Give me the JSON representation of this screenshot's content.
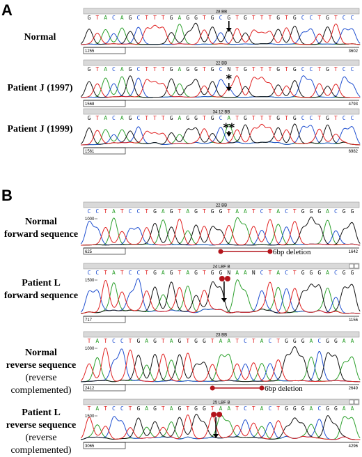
{
  "panels": {
    "A": {
      "letter": "A",
      "rows": [
        {
          "label": "Normal",
          "header": "28 BB",
          "seq": "GTACAGCTTTGAGGTGCGTGTTTGTGCCTGTCC",
          "left": "1255",
          "right": "3602",
          "mark": "arrow"
        },
        {
          "label": "Patient J (1997)",
          "header": "22 BB",
          "seq": "GTACAGCTTTGAGGTGCNTGTTTGTGCCTGTCC",
          "left": "1568",
          "right": "4793",
          "mark": "star"
        },
        {
          "label": "Patient J (1999)",
          "header": "34 12 BB",
          "seq": "GTACAGCTTTGAGGTGCATGTTTGTGCCTGTCC",
          "left": "1561",
          "right": "6982",
          "mark": "doublestar"
        }
      ]
    },
    "B": {
      "letter": "B",
      "rows": [
        {
          "label_lines": [
            "Normal",
            "forward sequence"
          ],
          "header": "22 BB",
          "seq": "CCTATCCTGAGTAGTGGTAATCTACTGGGACGG",
          "left": "625",
          "right": "1642",
          "ylabel": "1000"
        },
        {
          "label_lines": [
            "Patient L",
            "forward sequence"
          ],
          "header": "24 LBF B",
          "seq": "CCTATCCTGAGTAGTGGNAANCTACTGGGACGG",
          "left": "717",
          "right": "1156",
          "ylabel": "1500"
        },
        {
          "label_lines": [
            "Normal",
            "reverse sequence",
            "(reverse complemented)"
          ],
          "header": "23 BB",
          "seq": "TATCCTGAGTAGTGGTAATCTACTGGGACGGAA",
          "left": "2412",
          "right": "2649",
          "ylabel": "1000"
        },
        {
          "label_lines": [
            "Patient L",
            "reverse sequence",
            "(reverse complemented)"
          ],
          "header": "25 LBF B",
          "seq": "TATCCTGAGTAGTGGTAATCTACTGGGACGGAA",
          "left": "3065",
          "right": "4296",
          "ylabel": "1500"
        }
      ],
      "deletion_label": "6bp deletion"
    }
  },
  "colors": {
    "A": "#2ca02c",
    "C": "#1f4fd0",
    "G": "#111111",
    "T": "#e02020",
    "N": "#111111",
    "marker": "#b3141b"
  }
}
